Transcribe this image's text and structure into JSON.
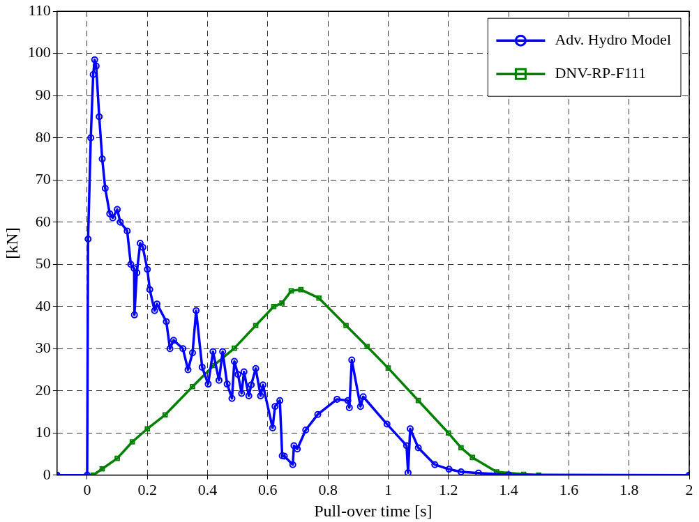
{
  "chart_data": {
    "type": "line",
    "xlabel": "Pull-over time [s]",
    "ylabel": "[kN]",
    "xlim": [
      -0.1,
      2
    ],
    "ylim": [
      0,
      110
    ],
    "xticks": [
      0,
      0.2,
      0.4,
      0.6,
      0.8,
      1,
      1.2,
      1.4,
      1.6,
      1.8,
      2
    ],
    "yticks": [
      0,
      10,
      20,
      30,
      40,
      50,
      60,
      70,
      80,
      90,
      100,
      110
    ],
    "grid": true,
    "legend": "top right",
    "line_style": "solid",
    "series": [
      {
        "name": "Adv. Hydro Model",
        "color": "#0000ff",
        "marker": "circle",
        "x": [
          -0.1,
          0,
          0.003,
          0.012,
          0.02,
          0.025,
          0.03,
          0.04,
          0.05,
          0.06,
          0.075,
          0.085,
          0.1,
          0.11,
          0.133,
          0.145,
          0.156,
          0.157,
          0.165,
          0.176,
          0.185,
          0.2,
          0.208,
          0.224,
          0.232,
          0.263,
          0.275,
          0.287,
          0.318,
          0.335,
          0.35,
          0.362,
          0.382,
          0.402,
          0.418,
          0.438,
          0.45,
          0.465,
          0.481,
          0.489,
          0.501,
          0.513,
          0.521,
          0.537,
          0.545,
          0.56,
          0.576,
          0.584,
          0.616,
          0.624,
          0.64,
          0.648,
          0.655,
          0.683,
          0.687,
          0.698,
          0.726,
          0.766,
          0.83,
          0.866,
          0.871,
          0.879,
          0.908,
          0.917,
          0.996,
          1.061,
          1.066,
          1.073,
          1.1,
          1.155,
          1.202,
          1.242,
          1.3,
          1.4,
          2
        ],
        "values": [
          0,
          0,
          56,
          80,
          95,
          98.5,
          97,
          85,
          75,
          68,
          62,
          61,
          63,
          60,
          57.9,
          50,
          49,
          38,
          48,
          55,
          54,
          48.8,
          44,
          39,
          40.6,
          36.4,
          30,
          32,
          30,
          25,
          29,
          39,
          25.6,
          21.6,
          29.3,
          22.5,
          29.3,
          21.6,
          18.2,
          27,
          23.9,
          19.4,
          24.5,
          18.8,
          21.4,
          25.3,
          18.8,
          21.4,
          11.2,
          16.3,
          17.7,
          4.6,
          4.5,
          2.5,
          7,
          6.2,
          10.7,
          14.4,
          18,
          17.7,
          16,
          27.3,
          16.3,
          18.6,
          12.1,
          7,
          0.6,
          11,
          6.5,
          2.5,
          1.4,
          0.8,
          0.5,
          0.1,
          0
        ]
      },
      {
        "name": "DNV-RP-F111",
        "color": "#008000",
        "marker": "square",
        "x": [
          -0.1,
          0.02,
          0.05,
          0.1,
          0.15,
          0.2,
          0.259,
          0.35,
          0.42,
          0.489,
          0.56,
          0.62,
          0.647,
          0.678,
          0.71,
          0.77,
          0.86,
          0.93,
          1.0,
          1.1,
          1.2,
          1.242,
          1.28,
          1.36,
          1.45,
          1.5,
          2
        ],
        "values": [
          0,
          0,
          1.5,
          4,
          7.9,
          11,
          14.3,
          21,
          26,
          30.1,
          35.5,
          40,
          40.8,
          43.7,
          44,
          42,
          35.5,
          30.5,
          25.4,
          17.7,
          10,
          6.5,
          4.2,
          0.8,
          0.2,
          0,
          0
        ]
      }
    ]
  }
}
